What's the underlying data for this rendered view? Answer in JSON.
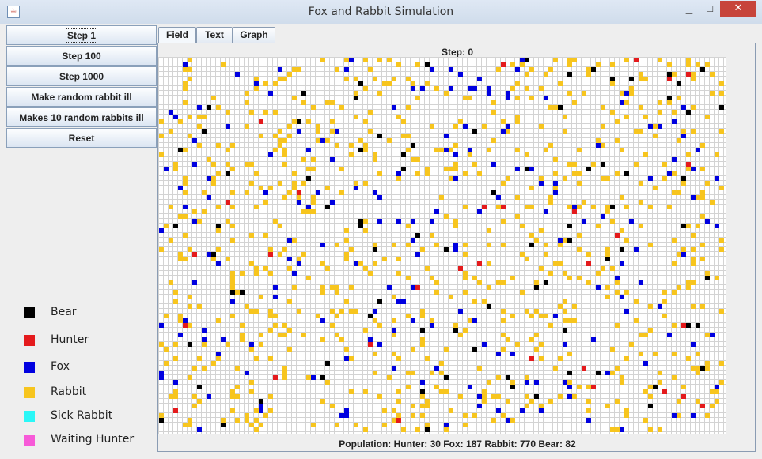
{
  "window": {
    "title": "Fox and Rabbit Simulation",
    "app_icon": "java-cup-icon",
    "minimize_glyph": "▁",
    "maximize_glyph": "☐",
    "close_glyph": "✕"
  },
  "controls": {
    "step1": "Step 1",
    "step100": "Step 100",
    "step1000": "Step 1000",
    "make_ill": "Make random rabbit ill",
    "make10_ill": "Makes 10 random rabbits ill",
    "reset": "Reset"
  },
  "tabs": {
    "field": "Field",
    "text": "Text",
    "graph": "Graph",
    "selected": "Field"
  },
  "field": {
    "step_text": "Step: 0",
    "population_text": "Population: Hunter: 30 Fox: 187 Rabbit: 770 Bear: 82",
    "background": "#ffffff",
    "grid_color": "#d3d3d3"
  },
  "legend": [
    {
      "label": "Bear",
      "color": "#000000"
    },
    {
      "label": "Hunter",
      "color": "#e41a1c"
    },
    {
      "label": "Fox",
      "color": "#0000e0"
    },
    {
      "label": "Rabbit",
      "color": "#f7c51e"
    },
    {
      "label": "Sick Rabbit",
      "color": "#2af7f7"
    },
    {
      "label": "Waiting Hunter",
      "color": "#f75ad8"
    }
  ]
}
